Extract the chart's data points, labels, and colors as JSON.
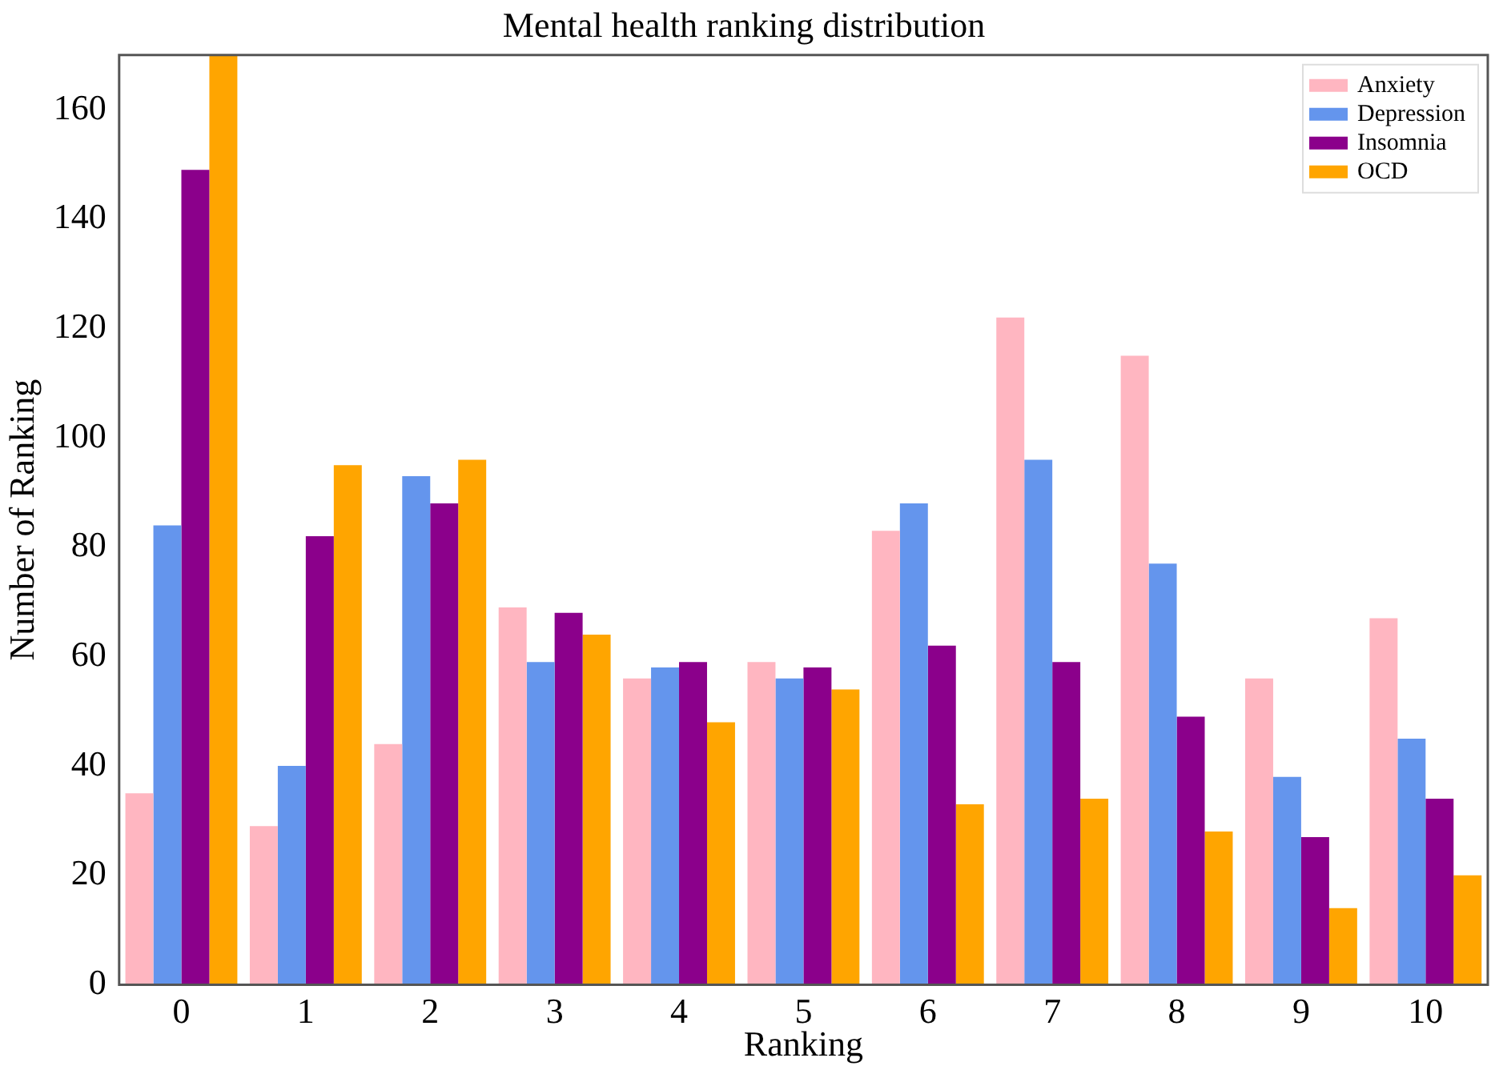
{
  "chart_data": {
    "type": "bar",
    "title": "Mental health ranking distribution",
    "xlabel": "Ranking",
    "ylabel": "Number of Ranking",
    "categories": [
      "0",
      "1",
      "2",
      "3",
      "4",
      "5",
      "6",
      "7",
      "8",
      "9",
      "10"
    ],
    "series": [
      {
        "name": "Anxiety",
        "color": "#ffb6c1",
        "values": [
          35,
          29,
          44,
          69,
          56,
          59,
          83,
          122,
          115,
          56,
          67
        ]
      },
      {
        "name": "Depression",
        "color": "#6495ed",
        "values": [
          84,
          40,
          93,
          59,
          58,
          56,
          88,
          96,
          77,
          38,
          45
        ]
      },
      {
        "name": "Insomnia",
        "color": "#8b008b",
        "values": [
          149,
          82,
          88,
          68,
          59,
          58,
          62,
          59,
          49,
          27,
          34
        ]
      },
      {
        "name": "OCD",
        "color": "#ffa500",
        "values": [
          170,
          95,
          96,
          64,
          48,
          54,
          33,
          34,
          28,
          14,
          20
        ]
      }
    ],
    "ylim": [
      0,
      170
    ],
    "yticks": [
      0,
      20,
      40,
      60,
      80,
      100,
      120,
      140,
      160
    ],
    "grid": false,
    "legend": "top right"
  }
}
